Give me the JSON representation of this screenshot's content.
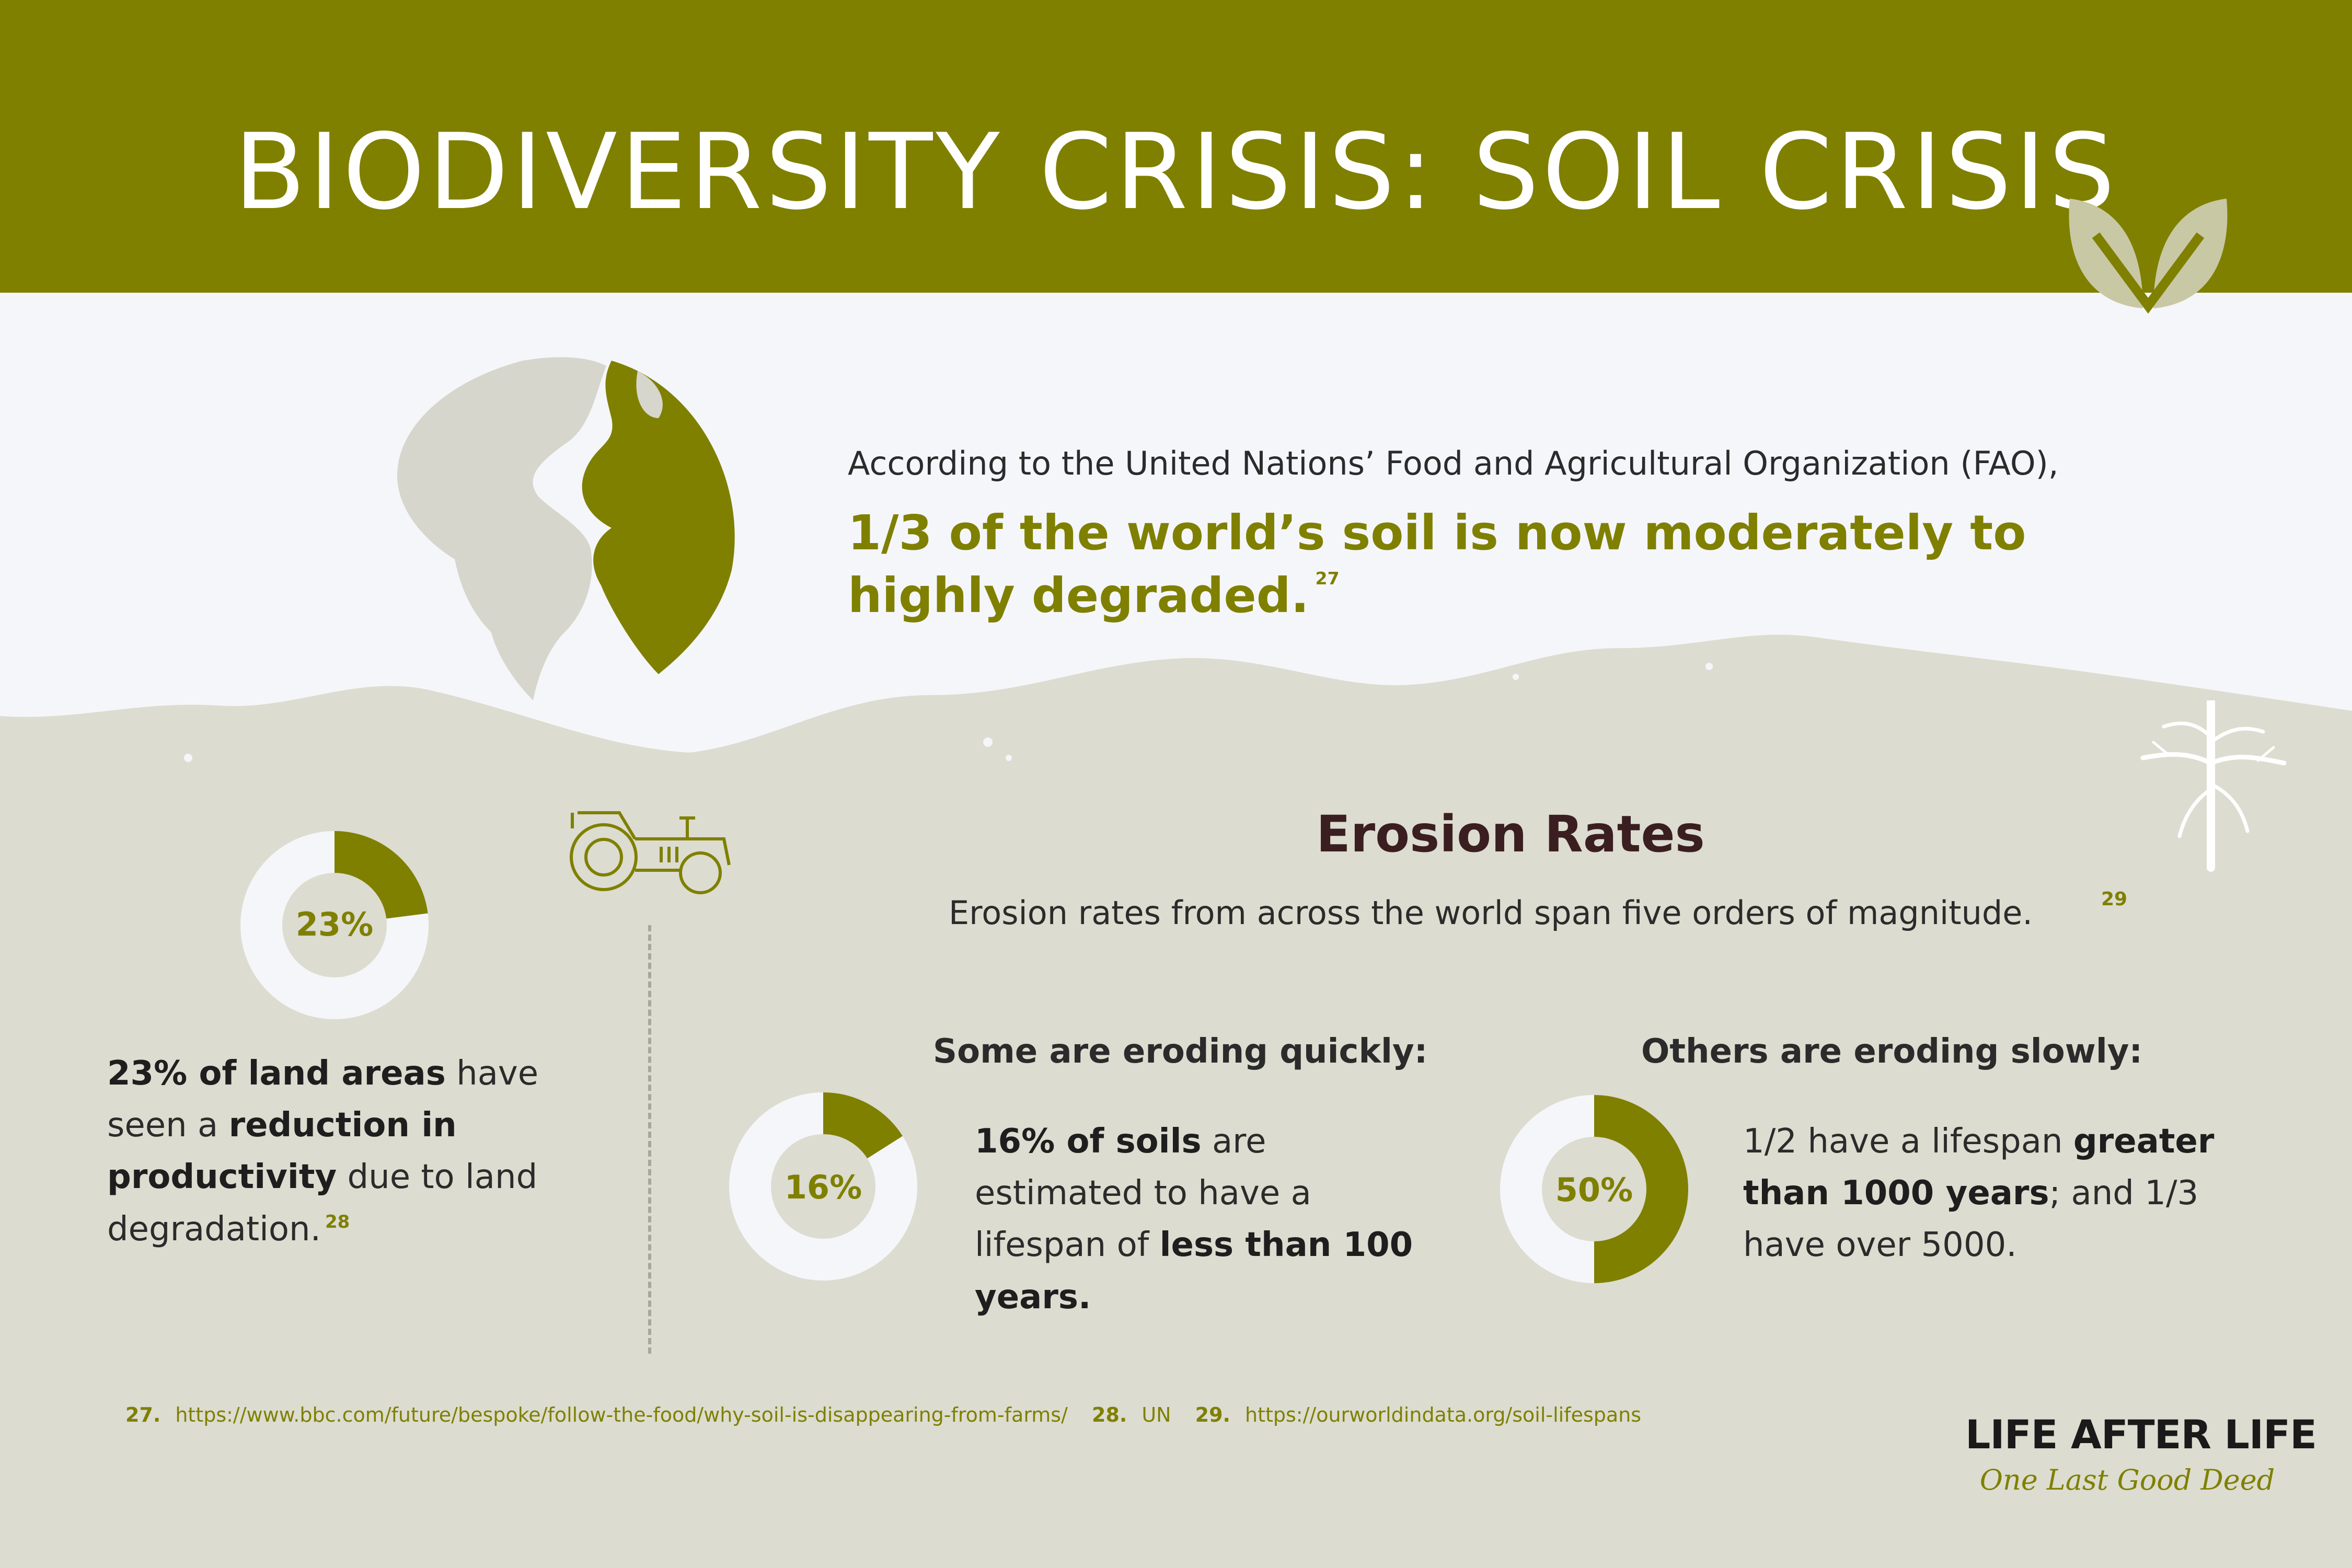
{
  "header": {
    "title": "BIODIVERSITY CRISIS: SOIL CRISIS",
    "background_color": "#7f8000",
    "icon": "leaf-icon"
  },
  "intro": {
    "lead": "According to the United Nations’ Food and Agricultural Organization (FAO),",
    "headline": "1/3 of the world’s soil is now moderately to highly degraded.",
    "footnote_ref": "27",
    "icon": "globe-icon"
  },
  "land_productivity": {
    "percent_label": "23%",
    "percent_value": 23,
    "text_bold_1": "23% of land areas",
    "text_1": " have seen a ",
    "text_bold_2": "reduction in productivity",
    "text_2": " due to land degradation.",
    "footnote_ref": "28",
    "icon": "tractor-icon"
  },
  "erosion": {
    "title": "Erosion Rates",
    "subtitle": "Erosion rates from across the world span five orders of magnitude.",
    "footnote_ref": "29",
    "quick": {
      "heading": "Some are eroding quickly:",
      "percent_label": "16%",
      "percent_value": 16,
      "text_bold_1": "16% of soils",
      "text_1": " are estimated to have a lifespan of ",
      "text_bold_2": "less than 100 years."
    },
    "slow": {
      "heading": "Others are eroding slowly:",
      "percent_label": "50%",
      "percent_value": 50,
      "text_1": "1/2 have a lifespan ",
      "text_bold_1": "greater than 1000 years",
      "text_2": "; and 1/3 have over 5000."
    }
  },
  "footnotes": [
    {
      "num": "27.",
      "text": "https://www.bbc.com/future/bespoke/follow-the-food/why-soil-is-disappearing-from-farms/"
    },
    {
      "num": "28.",
      "text": "UN"
    },
    {
      "num": "29.",
      "text": "https://ourworldindata.org/soil-lifespans"
    }
  ],
  "brand": {
    "name": "LIFE AFTER LIFE",
    "tagline": "One Last Good Deed"
  },
  "colors": {
    "accent": "#7f8000",
    "ground": "#dcdcd0",
    "sky": "#f5f6fa",
    "donut_track": "#f5f6fa",
    "title_dark": "#3a1e20"
  }
}
